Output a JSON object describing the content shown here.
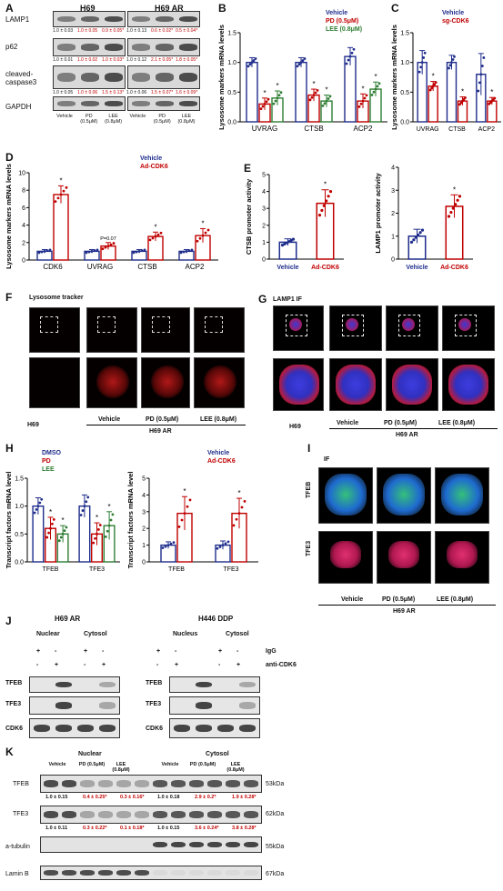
{
  "panels": {
    "A": {
      "letter": "A",
      "groups": [
        "H69",
        "H69 AR"
      ],
      "proteins": [
        "LAMP1",
        "p62",
        "cleaved-caspase3",
        "GAPDH"
      ],
      "quant": [
        [
          "1.0 ± 0.03",
          "1.0 ± 0.05",
          "0.9 ± 0.05*",
          "1.0 ± 0.13",
          "0.6 ± 0.02*",
          "0.5 ± 0.04*"
        ],
        [
          "1.0 ± 0.01",
          "1.0 ± 0.02",
          "1.0 ± 0.03*",
          "1.0 ± 0.12",
          "2.1 ± 0.05*",
          "1.8 ± 0.05*"
        ],
        [
          "1.0 ± 0.05",
          "1.0 ± 0.06",
          "1.5 ± 0.13*",
          "1.0 ± 0.06",
          "1.5 ± 0.07*",
          "1.6 ± 0.09*"
        ]
      ],
      "lanes": [
        "Vehicle",
        "PD (0.5μM)",
        "LEE (0.8μM)",
        "Vehicle",
        "PD (0.5μM)",
        "LEE (0.8μM)"
      ]
    },
    "B": {
      "letter": "B"
    },
    "C": {
      "letter": "C"
    },
    "D": {
      "letter": "D"
    },
    "E": {
      "letter": "E"
    },
    "F": {
      "letter": "F",
      "title": "Lysosome tracker",
      "labels": [
        "H69",
        "Vehicle",
        "PD (0.5μM)",
        "LEE (0.8μM)"
      ],
      "group": "H69 AR"
    },
    "G": {
      "letter": "G",
      "title": "LAMP1 IF",
      "labels": [
        "H69",
        "Vehicle",
        "PD (0.5μM)",
        "LEE (0.8μM)"
      ],
      "group": "H69 AR"
    },
    "H": {
      "letter": "H"
    },
    "I": {
      "letter": "I",
      "title": "IF",
      "rows": [
        "TFEB",
        "TFE3"
      ],
      "labels": [
        "Vehicle",
        "PD (0.5μM)",
        "LEE (0.8μM)"
      ],
      "group": "H69 AR"
    },
    "J": {
      "letter": "J",
      "left_title": "H69 AR",
      "right_title": "H446 DDP",
      "left_fractions": [
        "Nuclear",
        "Cytosol"
      ],
      "right_fractions": [
        "Nucleus",
        "Cytosol"
      ],
      "signs_igg": [
        "+",
        "-",
        "+",
        "-"
      ],
      "signs_cdk6": [
        "-",
        "+",
        "-",
        "+"
      ],
      "row_labels": [
        "IgG",
        "anti-CDK6"
      ],
      "proteins": [
        "TFEB",
        "TFE3",
        "CDK6"
      ]
    },
    "K": {
      "letter": "K",
      "fractions": [
        "Nuclear",
        "Cytosol"
      ],
      "lanes": [
        "Vehicle",
        "PD (0.5μM)",
        "LEE (0.8μM)",
        "Vehicle",
        "PD (0.5μM)",
        "LEE (0.8μM)"
      ],
      "proteins": [
        "TFEB",
        "TFE3",
        "a-tubulin",
        "Lamin B"
      ],
      "sizes": [
        "53kDa",
        "62kDa",
        "55kDa",
        "67kDa"
      ],
      "quant": [
        [
          "1.0 ± 0.15",
          "0.4 ± 0.25*",
          "0.3 ± 0.16*",
          "1.0 ± 0.18",
          "2.9 ± 0.2*",
          "1.9 ± 0.28*"
        ],
        [
          "1.0 ± 0.11",
          "0.3 ± 0.22*",
          "0.1 ± 0.18*",
          "1.0 ± 0.15",
          "3.6 ± 0.24*",
          "3.8 ± 0.28*"
        ]
      ]
    }
  },
  "chart_data": [
    {
      "id": "B",
      "type": "bar",
      "ylabel": "Lysosome markers mRNA levels",
      "categories": [
        "UVRAG",
        "CTSB",
        "ACP2"
      ],
      "ylim": [
        0,
        1.5
      ],
      "yticks": [
        "0.0",
        "0.5",
        "1.0",
        "1.5"
      ],
      "series": [
        {
          "name": "Vehicle",
          "color": "#1f2d8c",
          "values": [
            1.0,
            1.0,
            1.1
          ],
          "err": [
            0.08,
            0.08,
            0.15
          ]
        },
        {
          "name": "PD (0.5μM)",
          "color": "#c00000",
          "values": [
            0.3,
            0.45,
            0.35
          ],
          "err": [
            0.1,
            0.1,
            0.12
          ]
        },
        {
          "name": "LEE (0.8μM)",
          "color": "#2e7d32",
          "values": [
            0.4,
            0.35,
            0.55
          ],
          "err": [
            0.12,
            0.1,
            0.12
          ]
        }
      ],
      "stars": [
        "",
        "*",
        "*",
        "",
        "*",
        "*",
        "",
        "*",
        "*"
      ]
    },
    {
      "id": "C",
      "type": "bar",
      "ylabel": "Lysosome markers mRNA levels",
      "categories": [
        "UVRAG",
        "CTSB",
        "ACP2"
      ],
      "ylim": [
        0,
        1.5
      ],
      "yticks": [
        "0.0",
        "0.5",
        "1.0",
        "1.5"
      ],
      "series": [
        {
          "name": "Vehicle",
          "color": "#1f2d8c",
          "values": [
            1.0,
            1.0,
            0.8
          ],
          "err": [
            0.2,
            0.12,
            0.35
          ]
        },
        {
          "name": "sg-CDK6",
          "color": "#c00000",
          "values": [
            0.6,
            0.35,
            0.35
          ],
          "err": [
            0.08,
            0.07,
            0.06
          ]
        }
      ],
      "stars": [
        "",
        "*",
        "",
        "*",
        "",
        "*"
      ]
    },
    {
      "id": "D",
      "type": "bar",
      "ylabel": "Lysosome markers mRNA levels",
      "categories": [
        "CDK6",
        "UVRAG",
        "CTSB",
        "ACP2"
      ],
      "ylim": [
        0,
        10
      ],
      "yticks": [
        "0",
        "2",
        "4",
        "6",
        "8",
        "10"
      ],
      "series": [
        {
          "name": "Vehicle",
          "color": "#1f2d8c",
          "values": [
            1.0,
            1.0,
            1.0,
            1.0
          ],
          "err": [
            0.2,
            0.2,
            0.2,
            0.2
          ]
        },
        {
          "name": "Ad-CDK6",
          "color": "#c00000",
          "values": [
            7.5,
            1.6,
            2.7,
            2.8
          ],
          "err": [
            1.0,
            0.4,
            0.5,
            0.8
          ]
        }
      ],
      "stars": [
        "",
        "*",
        "",
        "P=0.07",
        "",
        "*",
        "",
        "*"
      ]
    },
    {
      "id": "E1",
      "type": "bar",
      "ylabel": "CTSB promoter activity",
      "categories": [
        "Vehicle",
        "Ad-CDK6"
      ],
      "ylim": [
        0,
        5
      ],
      "yticks": [
        "0",
        "1",
        "2",
        "3",
        "4",
        "5"
      ],
      "series": [
        {
          "name": "",
          "colors": [
            "#1f2d8c",
            "#c00000"
          ],
          "values": [
            1.0,
            3.3
          ],
          "err": [
            0.2,
            0.8
          ]
        }
      ],
      "stars": [
        "",
        "*"
      ]
    },
    {
      "id": "E2",
      "type": "bar",
      "ylabel": "LAMP1 promoter activity",
      "categories": [
        "Vehicle",
        "Ad-CDK6"
      ],
      "ylim": [
        0,
        4
      ],
      "yticks": [
        "0",
        "1",
        "2",
        "3",
        "4"
      ],
      "series": [
        {
          "name": "",
          "colors": [
            "#1f2d8c",
            "#c00000"
          ],
          "values": [
            1.0,
            2.3
          ],
          "err": [
            0.3,
            0.5
          ]
        }
      ],
      "stars": [
        "",
        "*"
      ]
    },
    {
      "id": "H1",
      "type": "bar",
      "ylabel": "Transcript factors mRNA level",
      "categories": [
        "TFEB",
        "TFE3"
      ],
      "ylim": [
        0,
        1.5
      ],
      "yticks": [
        "0.0",
        "0.5",
        "1.0",
        "1.5"
      ],
      "series": [
        {
          "name": "DMSO",
          "color": "#1f2d8c",
          "values": [
            1.0,
            1.0
          ],
          "err": [
            0.15,
            0.2
          ]
        },
        {
          "name": "PD",
          "color": "#c00000",
          "values": [
            0.6,
            0.5
          ],
          "err": [
            0.2,
            0.2
          ]
        },
        {
          "name": "LEE",
          "color": "#2e7d32",
          "values": [
            0.5,
            0.65
          ],
          "err": [
            0.15,
            0.25
          ]
        }
      ],
      "stars": [
        "",
        "*",
        "*",
        "",
        "*",
        "*"
      ]
    },
    {
      "id": "H2",
      "type": "bar",
      "ylabel": "Transcript factors mRNA level",
      "categories": [
        "TFEB",
        "TFE3"
      ],
      "ylim": [
        0,
        5
      ],
      "yticks": [
        "0",
        "1",
        "2",
        "3",
        "4",
        "5"
      ],
      "series": [
        {
          "name": "Vehicle",
          "color": "#1f2d8c",
          "values": [
            1.0,
            1.0
          ],
          "err": [
            0.2,
            0.25
          ]
        },
        {
          "name": "Ad-CDK6",
          "color": "#c00000",
          "values": [
            2.9,
            2.9
          ],
          "err": [
            1.0,
            0.9
          ]
        }
      ],
      "stars": [
        "",
        "*",
        "",
        "*"
      ]
    }
  ]
}
